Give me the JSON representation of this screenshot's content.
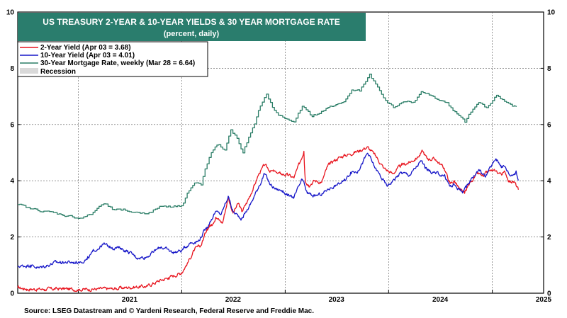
{
  "chart_data": {
    "type": "line",
    "title": "US TREASURY 2-YEAR & 10-YEAR YIELDS & 30 YEAR MORTGAGE RATE",
    "subtitle": "(percent, daily)",
    "source": "Source: LSEG Datastream and © Yardeni Research, Federal Reserve and Freddie Mac.",
    "x_range": [
      "2020-06-01",
      "2025-07-01"
    ],
    "x_ticks": [
      "2021",
      "2022",
      "2023",
      "2024",
      "2025"
    ],
    "ylim": [
      0,
      10
    ],
    "y_ticks": [
      "0",
      "2",
      "4",
      "6",
      "8",
      "10"
    ],
    "grid": true,
    "legend_position": "top-left",
    "legend": [
      {
        "label": "2-Year Yield (Apr 03 = 3.68)",
        "color": "#e8141e"
      },
      {
        "label": "10-Year Yield (Apr 03 = 4.01)",
        "color": "#1616c8"
      },
      {
        "label": "30-Year Mortgage Rate, weekly (Mar 28 = 6.64)",
        "color": "#2a7d66"
      },
      {
        "label": "Recession",
        "color": "#d9d9d9"
      }
    ],
    "series": [
      {
        "name": "2-Year Yield",
        "color": "#e8141e",
        "points": [
          [
            "2020-06-01",
            0.2
          ],
          [
            "2020-07-01",
            0.15
          ],
          [
            "2020-09-01",
            0.14
          ],
          [
            "2020-11-01",
            0.16
          ],
          [
            "2021-01-01",
            0.13
          ],
          [
            "2021-03-01",
            0.15
          ],
          [
            "2021-05-01",
            0.16
          ],
          [
            "2021-07-01",
            0.21
          ],
          [
            "2021-09-01",
            0.25
          ],
          [
            "2021-10-15",
            0.45
          ],
          [
            "2021-11-15",
            0.55
          ],
          [
            "2021-12-31",
            0.73
          ],
          [
            "2022-01-20",
            1.05
          ],
          [
            "2022-02-15",
            1.55
          ],
          [
            "2022-03-10",
            1.7
          ],
          [
            "2022-03-31",
            2.3
          ],
          [
            "2022-04-15",
            2.45
          ],
          [
            "2022-05-01",
            2.7
          ],
          [
            "2022-05-25",
            2.5
          ],
          [
            "2022-06-14",
            3.4
          ],
          [
            "2022-07-01",
            2.85
          ],
          [
            "2022-07-20",
            3.2
          ],
          [
            "2022-08-01",
            2.9
          ],
          [
            "2022-08-20",
            3.25
          ],
          [
            "2022-09-15",
            3.85
          ],
          [
            "2022-09-30",
            4.25
          ],
          [
            "2022-10-20",
            4.55
          ],
          [
            "2022-11-10",
            4.35
          ],
          [
            "2022-11-30",
            4.3
          ],
          [
            "2022-12-15",
            4.25
          ],
          [
            "2023-01-10",
            4.2
          ],
          [
            "2023-02-01",
            4.1
          ],
          [
            "2023-02-20",
            4.6
          ],
          [
            "2023-03-08",
            5.05
          ],
          [
            "2023-03-13",
            4.0
          ],
          [
            "2023-03-24",
            3.85
          ],
          [
            "2023-04-15",
            4.0
          ],
          [
            "2023-05-10",
            3.95
          ],
          [
            "2023-05-30",
            4.5
          ],
          [
            "2023-06-20",
            4.7
          ],
          [
            "2023-07-15",
            4.85
          ],
          [
            "2023-08-15",
            4.95
          ],
          [
            "2023-09-15",
            5.05
          ],
          [
            "2023-10-18",
            5.2
          ],
          [
            "2023-11-15",
            4.9
          ],
          [
            "2023-12-15",
            4.45
          ],
          [
            "2024-01-15",
            4.25
          ],
          [
            "2024-02-15",
            4.55
          ],
          [
            "2024-03-15",
            4.65
          ],
          [
            "2024-04-15",
            4.85
          ],
          [
            "2024-04-30",
            5.05
          ],
          [
            "2024-05-15",
            4.8
          ],
          [
            "2024-06-15",
            4.75
          ],
          [
            "2024-07-15",
            4.45
          ],
          [
            "2024-08-05",
            3.9
          ],
          [
            "2024-08-20",
            4.0
          ],
          [
            "2024-09-10",
            3.65
          ],
          [
            "2024-09-25",
            3.55
          ],
          [
            "2024-10-15",
            3.95
          ],
          [
            "2024-11-10",
            4.25
          ],
          [
            "2024-12-01",
            4.15
          ],
          [
            "2024-12-20",
            4.35
          ],
          [
            "2025-01-10",
            4.35
          ],
          [
            "2025-02-01",
            4.25
          ],
          [
            "2025-02-15",
            4.3
          ],
          [
            "2025-03-01",
            4.0
          ],
          [
            "2025-03-20",
            3.95
          ],
          [
            "2025-04-03",
            3.68
          ]
        ]
      },
      {
        "name": "10-Year Yield",
        "color": "#1616c8",
        "points": [
          [
            "2020-06-01",
            0.95
          ],
          [
            "2020-07-15",
            1.0
          ],
          [
            "2020-08-15",
            0.9
          ],
          [
            "2020-09-15",
            1.0
          ],
          [
            "2020-10-15",
            1.1
          ],
          [
            "2020-11-15",
            1.1
          ],
          [
            "2021-01-01",
            1.1
          ],
          [
            "2021-02-01",
            1.2
          ],
          [
            "2021-02-25",
            1.5
          ],
          [
            "2021-03-31",
            1.74
          ],
          [
            "2021-04-30",
            1.63
          ],
          [
            "2021-05-31",
            1.6
          ],
          [
            "2021-06-30",
            1.45
          ],
          [
            "2021-07-31",
            1.25
          ],
          [
            "2021-08-31",
            1.3
          ],
          [
            "2021-09-30",
            1.52
          ],
          [
            "2021-10-20",
            1.65
          ],
          [
            "2021-11-30",
            1.45
          ],
          [
            "2021-12-31",
            1.52
          ],
          [
            "2022-01-31",
            1.8
          ],
          [
            "2022-02-28",
            1.85
          ],
          [
            "2022-03-31",
            2.35
          ],
          [
            "2022-04-30",
            2.9
          ],
          [
            "2022-05-20",
            2.8
          ],
          [
            "2022-06-14",
            3.45
          ],
          [
            "2022-07-01",
            2.9
          ],
          [
            "2022-07-31",
            2.65
          ],
          [
            "2022-08-31",
            3.15
          ],
          [
            "2022-09-30",
            3.8
          ],
          [
            "2022-10-20",
            4.25
          ],
          [
            "2022-11-10",
            3.85
          ],
          [
            "2022-11-30",
            3.7
          ],
          [
            "2022-12-20",
            3.65
          ],
          [
            "2023-01-15",
            3.45
          ],
          [
            "2023-02-01",
            3.4
          ],
          [
            "2023-03-02",
            4.05
          ],
          [
            "2023-03-20",
            3.55
          ],
          [
            "2023-04-15",
            3.45
          ],
          [
            "2023-05-15",
            3.55
          ],
          [
            "2023-05-30",
            3.7
          ],
          [
            "2023-06-30",
            3.85
          ],
          [
            "2023-07-31",
            4.0
          ],
          [
            "2023-08-20",
            4.3
          ],
          [
            "2023-09-15",
            4.35
          ],
          [
            "2023-10-19",
            4.98
          ],
          [
            "2023-11-15",
            4.45
          ],
          [
            "2023-12-27",
            3.8
          ],
          [
            "2024-01-15",
            4.0
          ],
          [
            "2024-02-15",
            4.3
          ],
          [
            "2024-03-15",
            4.2
          ],
          [
            "2024-04-25",
            4.7
          ],
          [
            "2024-05-15",
            4.4
          ],
          [
            "2024-06-15",
            4.25
          ],
          [
            "2024-07-15",
            4.2
          ],
          [
            "2024-08-05",
            3.8
          ],
          [
            "2024-08-20",
            3.85
          ],
          [
            "2024-09-16",
            3.62
          ],
          [
            "2024-10-01",
            3.75
          ],
          [
            "2024-10-20",
            4.1
          ],
          [
            "2024-11-15",
            4.4
          ],
          [
            "2024-12-06",
            4.15
          ],
          [
            "2025-01-14",
            4.78
          ],
          [
            "2025-01-31",
            4.55
          ],
          [
            "2025-02-15",
            4.5
          ],
          [
            "2025-03-04",
            4.2
          ],
          [
            "2025-03-20",
            4.25
          ],
          [
            "2025-03-26",
            4.35
          ],
          [
            "2025-04-03",
            4.01
          ]
        ]
      },
      {
        "name": "30-Year Mortgage Rate",
        "color": "#2a7d66",
        "points": [
          [
            "2020-06-01",
            3.15
          ],
          [
            "2020-07-15",
            3.0
          ],
          [
            "2020-09-01",
            2.92
          ],
          [
            "2020-11-01",
            2.8
          ],
          [
            "2021-01-07",
            2.67
          ],
          [
            "2021-02-15",
            2.8
          ],
          [
            "2021-03-15",
            3.09
          ],
          [
            "2021-04-01",
            3.18
          ],
          [
            "2021-05-01",
            2.98
          ],
          [
            "2021-06-01",
            2.95
          ],
          [
            "2021-07-15",
            2.88
          ],
          [
            "2021-08-15",
            2.86
          ],
          [
            "2021-09-15",
            2.88
          ],
          [
            "2021-10-15",
            3.09
          ],
          [
            "2021-11-15",
            3.1
          ],
          [
            "2021-12-31",
            3.11
          ],
          [
            "2022-01-20",
            3.56
          ],
          [
            "2022-02-15",
            3.92
          ],
          [
            "2022-03-10",
            3.85
          ],
          [
            "2022-03-24",
            4.42
          ],
          [
            "2022-04-15",
            5.0
          ],
          [
            "2022-05-05",
            5.27
          ],
          [
            "2022-06-02",
            5.09
          ],
          [
            "2022-06-23",
            5.81
          ],
          [
            "2022-07-15",
            5.51
          ],
          [
            "2022-08-05",
            4.99
          ],
          [
            "2022-08-25",
            5.55
          ],
          [
            "2022-09-15",
            6.02
          ],
          [
            "2022-10-05",
            6.66
          ],
          [
            "2022-10-27",
            7.08
          ],
          [
            "2022-11-17",
            6.61
          ],
          [
            "2022-12-08",
            6.33
          ],
          [
            "2023-01-15",
            6.15
          ],
          [
            "2023-02-01",
            6.09
          ],
          [
            "2023-03-02",
            6.65
          ],
          [
            "2023-04-06",
            6.28
          ],
          [
            "2023-05-01",
            6.39
          ],
          [
            "2023-05-25",
            6.57
          ],
          [
            "2023-06-29",
            6.71
          ],
          [
            "2023-07-27",
            6.81
          ],
          [
            "2023-08-24",
            7.23
          ],
          [
            "2023-09-21",
            7.19
          ],
          [
            "2023-10-26",
            7.79
          ],
          [
            "2023-11-16",
            7.44
          ],
          [
            "2023-12-14",
            6.95
          ],
          [
            "2024-01-18",
            6.6
          ],
          [
            "2024-02-15",
            6.77
          ],
          [
            "2024-03-28",
            6.79
          ],
          [
            "2024-04-25",
            7.17
          ],
          [
            "2024-05-30",
            7.03
          ],
          [
            "2024-06-27",
            6.86
          ],
          [
            "2024-07-25",
            6.78
          ],
          [
            "2024-08-15",
            6.49
          ],
          [
            "2024-09-26",
            6.08
          ],
          [
            "2024-10-17",
            6.44
          ],
          [
            "2024-11-14",
            6.78
          ],
          [
            "2024-12-12",
            6.6
          ],
          [
            "2025-01-16",
            7.04
          ],
          [
            "2025-02-06",
            6.89
          ],
          [
            "2025-02-27",
            6.76
          ],
          [
            "2025-03-13",
            6.65
          ],
          [
            "2025-03-20",
            6.67
          ],
          [
            "2025-03-28",
            6.64
          ]
        ]
      }
    ]
  }
}
